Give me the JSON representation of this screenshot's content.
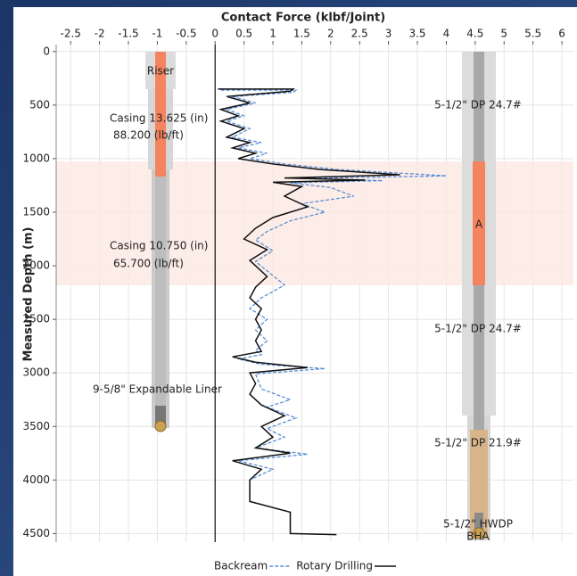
{
  "chart_data": {
    "type": "line",
    "x_label": "Contact Force (klbf/Joint)",
    "y_label": "Measured Depth (m)",
    "xlim": [
      -2.75,
      6.2
    ],
    "xticks": [
      -2.5,
      -2,
      -1.5,
      -1,
      -0.5,
      0,
      0.5,
      1,
      1.5,
      2,
      2.5,
      3,
      3.5,
      4,
      4.5,
      5,
      5.5,
      6
    ],
    "ylim": [
      -65,
      4580
    ],
    "yticks": [
      0,
      500,
      1000,
      1500,
      2000,
      2500,
      3000,
      3500,
      4000,
      4500
    ],
    "y_inverted": true,
    "grid": true,
    "series": [
      {
        "name": "Backream",
        "color": "#5b8fd6",
        "dash": true,
        "values": [
          0.1,
          1.4,
          1.35,
          0.3,
          0.7,
          0.2,
          0.5,
          0.2,
          0.6,
          0.3,
          0.8,
          0.4,
          0.9,
          0.6,
          1.2,
          2.1,
          4.0,
          1.5,
          2.9,
          1.3,
          2.0,
          2.4,
          1.5,
          1.9,
          1.3,
          0.9,
          0.7,
          1.0,
          0.7,
          1.2,
          0.8,
          0.6,
          0.9,
          0.7,
          0.9,
          0.7,
          0.8,
          0.4,
          0.8,
          1.9,
          0.7,
          0.8,
          1.3,
          0.9,
          1.4,
          0.9,
          1.2,
          0.7,
          1.6,
          0.4,
          1.0,
          0.6,
          0.6,
          1.3,
          1.3,
          2.1
        ],
        "y": [
          360,
          360,
          380,
          420,
          480,
          540,
          600,
          650,
          720,
          800,
          850,
          900,
          950,
          1000,
          1050,
          1100,
          1160,
          1185,
          1205,
          1225,
          1270,
          1350,
          1420,
          1500,
          1580,
          1680,
          1760,
          1860,
          1960,
          2180,
          2300,
          2400,
          2500,
          2600,
          2700,
          2790,
          2830,
          2870,
          2920,
          2960,
          3010,
          3150,
          3250,
          3320,
          3420,
          3520,
          3600,
          3700,
          3760,
          3820,
          3900,
          4000,
          4200,
          4300,
          4500,
          4510
        ]
      },
      {
        "name": "Rotary Drilling",
        "color": "#111111",
        "dash": false,
        "values": [
          0.05,
          1.35,
          1.3,
          0.2,
          0.6,
          0.1,
          0.4,
          0.1,
          0.5,
          0.2,
          0.6,
          0.3,
          0.7,
          0.4,
          1.0,
          1.8,
          3.2,
          1.2,
          2.6,
          1.0,
          1.5,
          1.2,
          1.6,
          1.0,
          0.7,
          0.5,
          0.9,
          0.6,
          0.9,
          0.7,
          0.6,
          0.8,
          0.7,
          0.8,
          0.7,
          0.8,
          0.3,
          0.7,
          1.6,
          0.6,
          0.7,
          0.6,
          0.8,
          1.2,
          0.8,
          1.0,
          0.7,
          1.3,
          0.3,
          0.8,
          0.6,
          0.6,
          1.3,
          1.3,
          2.1
        ],
        "y": [
          350,
          350,
          370,
          420,
          480,
          540,
          600,
          650,
          720,
          800,
          850,
          900,
          950,
          1000,
          1050,
          1100,
          1150,
          1180,
          1200,
          1220,
          1260,
          1350,
          1450,
          1550,
          1650,
          1750,
          1850,
          1950,
          2100,
          2200,
          2300,
          2400,
          2500,
          2600,
          2700,
          2800,
          2850,
          2900,
          2950,
          3000,
          3100,
          3200,
          3300,
          3400,
          3500,
          3600,
          3700,
          3750,
          3820,
          3900,
          4000,
          4200,
          4300,
          4500,
          4510
        ]
      }
    ],
    "annotations": [
      "Riser",
      "Casing 13.625 (in)",
      "88.200 (lb/ft)",
      "Casing 10.750 (in)",
      "65.700 (lb/ft)",
      "9-5/8\" Expandable Liner",
      "5-1/2\" DP 24.7#",
      "A",
      "5-1/2\" DP 24.7#",
      "5-1/2\" DP 21.9#",
      "5-1/2\" HWDP",
      "BHA"
    ]
  }
}
